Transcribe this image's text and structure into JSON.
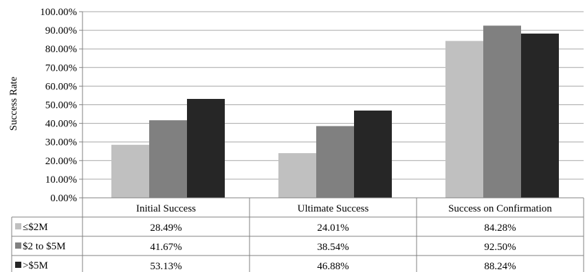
{
  "chart_data": {
    "type": "bar",
    "categories": [
      "Initial Success",
      "Ultimate Success",
      "Success on Confirmation"
    ],
    "series": [
      {
        "name": "≤$2M",
        "values": [
          28.49,
          24.01,
          84.28
        ],
        "labels": [
          "28.49%",
          "24.01%",
          "84.28%"
        ],
        "color": "#c0c0c0"
      },
      {
        "name": "$2 to $5M",
        "values": [
          41.67,
          38.54,
          92.5
        ],
        "labels": [
          "41.67%",
          "38.54%",
          "92.50%"
        ],
        "color": "#808080"
      },
      {
        "name": ">$5M",
        "values": [
          53.13,
          46.88,
          88.24
        ],
        "labels": [
          "53.13%",
          "46.88%",
          "88.24%"
        ],
        "color": "#262626"
      }
    ],
    "ylabel": "Success Rate",
    "ylim": [
      0,
      100
    ],
    "yticks": [
      "0.00%",
      "10.00%",
      "20.00%",
      "30.00%",
      "40.00%",
      "50.00%",
      "60.00%",
      "70.00%",
      "80.00%",
      "90.00%",
      "100.00%"
    ],
    "grid": true,
    "legend": "data-table-left"
  }
}
